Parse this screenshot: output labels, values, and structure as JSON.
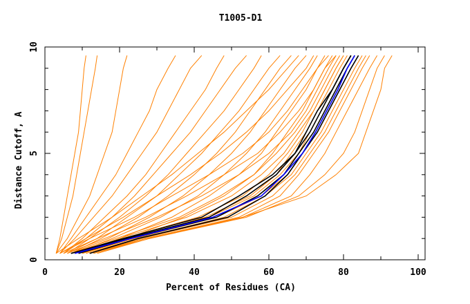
{
  "chart_data": {
    "type": "line",
    "title": "T1005-D1",
    "xlabel": "Percent of Residues (CA)",
    "ylabel": "Distance Cutoff, A",
    "xlim": [
      0,
      102
    ],
    "ylim": [
      0,
      10
    ],
    "xticks": [
      0,
      20,
      40,
      60,
      80,
      100
    ],
    "yticks": [
      0,
      5,
      10
    ],
    "grid": false,
    "orientation_note": "",
    "y_cutoffs": [
      0.3,
      1,
      2,
      3,
      4,
      5,
      6,
      7,
      8,
      9,
      9.6
    ],
    "colors": {
      "other_models": "#ff8000",
      "highlight_models": "#000000",
      "best_model": "#0000ff"
    },
    "series_groups": [
      {
        "color": "#ff8000",
        "series": [
          [
            3,
            4,
            5,
            6,
            7,
            8,
            9,
            9.5,
            10,
            10.5,
            11
          ],
          [
            3,
            4.5,
            6,
            7.5,
            8.5,
            9.5,
            10.5,
            11.5,
            12.5,
            13.5,
            14
          ],
          [
            3,
            6,
            9,
            12,
            14,
            16,
            18,
            19,
            20,
            21,
            22
          ],
          [
            4,
            7,
            11,
            15,
            19,
            22,
            25,
            28,
            30,
            33,
            35
          ],
          [
            4,
            8,
            13,
            18,
            22,
            26,
            30,
            33,
            36,
            39,
            42
          ],
          [
            5,
            10,
            16,
            22,
            27,
            31,
            35,
            39,
            43,
            46,
            48
          ],
          [
            5,
            11,
            18,
            24,
            29,
            34,
            39,
            43,
            47,
            51,
            54
          ],
          [
            6,
            12,
            20,
            27,
            33,
            38,
            43,
            48,
            52,
            56,
            58
          ],
          [
            6,
            14,
            22,
            30,
            36,
            42,
            47,
            52,
            56,
            60,
            63
          ],
          [
            7,
            15,
            25,
            33,
            40,
            46,
            51,
            55,
            59,
            63,
            66
          ],
          [
            7,
            17,
            28,
            37,
            44,
            50,
            55,
            59,
            63,
            67,
            70
          ],
          [
            8,
            18,
            31,
            41,
            48,
            54,
            59,
            63,
            67,
            71,
            73
          ],
          [
            8,
            20,
            34,
            44,
            52,
            58,
            62,
            66,
            70,
            73,
            76
          ],
          [
            9,
            22,
            37,
            48,
            56,
            61,
            65,
            69,
            72,
            75,
            78
          ],
          [
            9,
            21,
            41,
            53,
            60,
            65,
            69,
            72,
            75,
            78,
            80
          ],
          [
            10,
            23,
            43,
            55,
            62,
            66,
            70,
            73,
            76,
            79,
            81
          ],
          [
            8,
            22,
            44,
            56,
            63,
            68,
            71,
            74,
            77,
            80,
            82
          ],
          [
            10,
            24,
            46,
            58,
            65,
            69,
            73,
            76,
            79,
            82,
            84
          ],
          [
            11,
            25,
            48,
            59,
            66,
            70,
            74,
            77,
            80,
            83,
            85
          ],
          [
            12,
            26,
            50,
            61,
            67,
            71,
            75,
            78,
            81,
            84,
            86
          ],
          [
            13,
            27,
            52,
            63,
            68,
            72,
            76,
            79,
            82,
            85,
            87
          ],
          [
            12,
            27,
            53,
            66,
            71,
            75,
            78,
            81,
            84,
            87,
            89
          ],
          [
            14,
            28,
            54,
            68,
            75,
            80,
            83,
            85,
            87,
            89,
            91
          ],
          [
            13,
            28,
            53,
            70,
            78,
            84,
            86,
            88,
            90,
            91,
            93
          ],
          [
            9,
            20,
            38,
            50,
            58,
            64,
            68,
            72,
            75,
            78,
            80
          ],
          [
            7,
            19,
            36,
            47,
            56,
            62,
            67,
            71,
            74,
            77,
            79
          ],
          [
            6,
            16,
            30,
            42,
            52,
            60,
            66,
            70,
            73,
            76,
            78
          ],
          [
            5,
            14,
            27,
            38,
            48,
            57,
            63,
            68,
            72,
            75,
            77
          ],
          [
            4,
            12,
            24,
            34,
            44,
            53,
            60,
            65,
            69,
            73,
            75
          ],
          [
            4,
            11,
            21,
            30,
            39,
            47,
            54,
            60,
            65,
            70,
            72
          ],
          [
            3,
            9,
            18,
            26,
            34,
            41,
            48,
            54,
            60,
            65,
            68
          ]
        ]
      },
      {
        "color": "#000000",
        "series": [
          [
            7,
            22,
            44,
            54,
            62,
            67,
            71,
            74,
            77,
            80,
            82
          ],
          [
            9,
            23,
            46,
            57,
            64,
            68,
            72,
            75,
            78,
            81,
            83
          ],
          [
            12,
            25,
            49,
            59,
            65,
            69,
            73,
            76,
            79,
            82,
            84
          ],
          [
            7,
            21,
            42,
            52,
            61,
            67,
            70,
            73,
            77,
            80,
            82
          ]
        ]
      },
      {
        "color": "#0000ff",
        "series": [
          [
            8,
            23,
            45,
            58,
            64,
            69,
            72.5,
            75.5,
            78.5,
            81,
            83
          ]
        ]
      }
    ]
  }
}
